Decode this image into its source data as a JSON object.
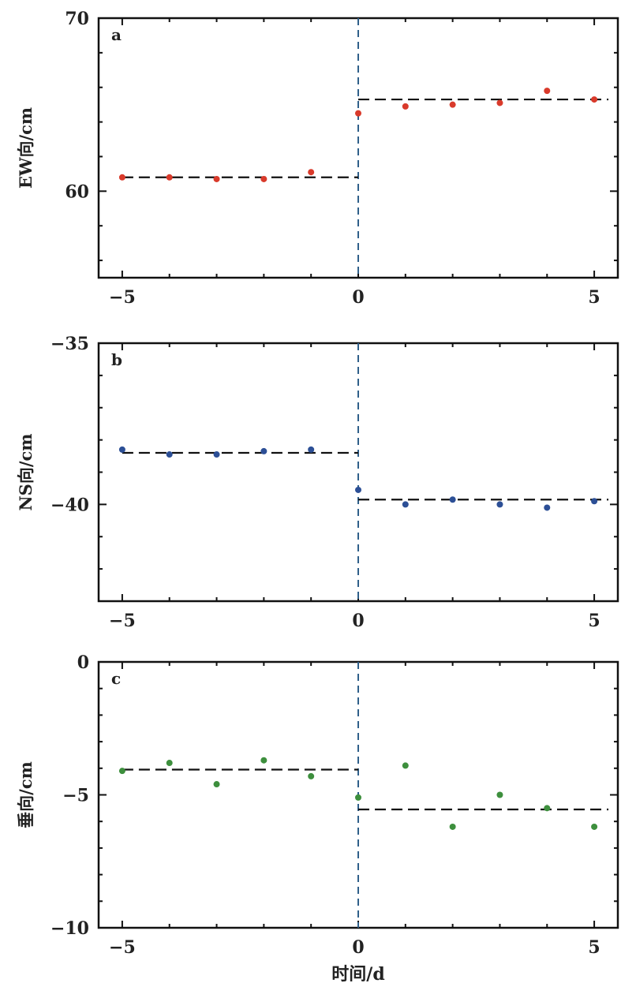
{
  "chart_data": [
    {
      "type": "scatter",
      "panel_label": "a",
      "ylabel": "EW向/cm",
      "xlabel": "",
      "xlim": [
        -5.5,
        5.5
      ],
      "ylim": [
        55,
        70
      ],
      "xticks": [
        -5,
        0,
        5
      ],
      "yticks": [
        60,
        70
      ],
      "color": "#d93a2b",
      "series": [
        {
          "x": [
            -5,
            -4,
            -3,
            -2,
            -1,
            0,
            1,
            2,
            3,
            4,
            5
          ],
          "y": [
            60.8,
            60.8,
            60.7,
            60.7,
            61.1,
            64.5,
            64.9,
            65.0,
            65.1,
            65.8,
            65.3
          ]
        }
      ],
      "reference_lines": [
        {
          "x_from": -5,
          "x_to": 0,
          "y": 60.8
        },
        {
          "x_from": 0,
          "x_to": 5.3,
          "y": 65.3
        }
      ],
      "event_line_x": 0
    },
    {
      "type": "scatter",
      "panel_label": "b",
      "ylabel": "NS向/cm",
      "xlabel": "",
      "xlim": [
        -5.5,
        5.5
      ],
      "ylim": [
        -43,
        -35
      ],
      "xticks": [
        -5,
        0,
        5
      ],
      "yticks": [
        -35,
        -40
      ],
      "color": "#2c4f96",
      "series": [
        {
          "x": [
            -5,
            -4,
            -3,
            -2,
            -1,
            0,
            1,
            2,
            3,
            4,
            5
          ],
          "y": [
            -38.3,
            -38.45,
            -38.45,
            -38.35,
            -38.3,
            -39.55,
            -40.0,
            -39.85,
            -40.0,
            -40.1,
            -39.9
          ]
        }
      ],
      "reference_lines": [
        {
          "x_from": -5,
          "x_to": 0,
          "y": -38.4
        },
        {
          "x_from": 0,
          "x_to": 5.3,
          "y": -39.85
        }
      ],
      "event_line_x": 0
    },
    {
      "type": "scatter",
      "panel_label": "c",
      "ylabel": "垂向/cm",
      "xlabel": "时间/d",
      "xlim": [
        -5.5,
        5.5
      ],
      "ylim": [
        -10,
        0
      ],
      "xticks": [
        -5,
        0,
        5
      ],
      "yticks": [
        0,
        -5,
        -10
      ],
      "color": "#3d8f3d",
      "series": [
        {
          "x": [
            -5,
            -4,
            -3,
            -2,
            -1,
            0,
            1,
            2,
            3,
            4,
            5
          ],
          "y": [
            -4.1,
            -3.8,
            -4.6,
            -3.7,
            -4.3,
            -5.1,
            -3.9,
            -6.2,
            -5.0,
            -5.5,
            -6.2
          ]
        }
      ],
      "reference_lines": [
        {
          "x_from": -5,
          "x_to": 0,
          "y": -4.05
        },
        {
          "x_from": 0,
          "x_to": 5.3,
          "y": -5.55
        }
      ],
      "event_line_x": 0
    }
  ]
}
